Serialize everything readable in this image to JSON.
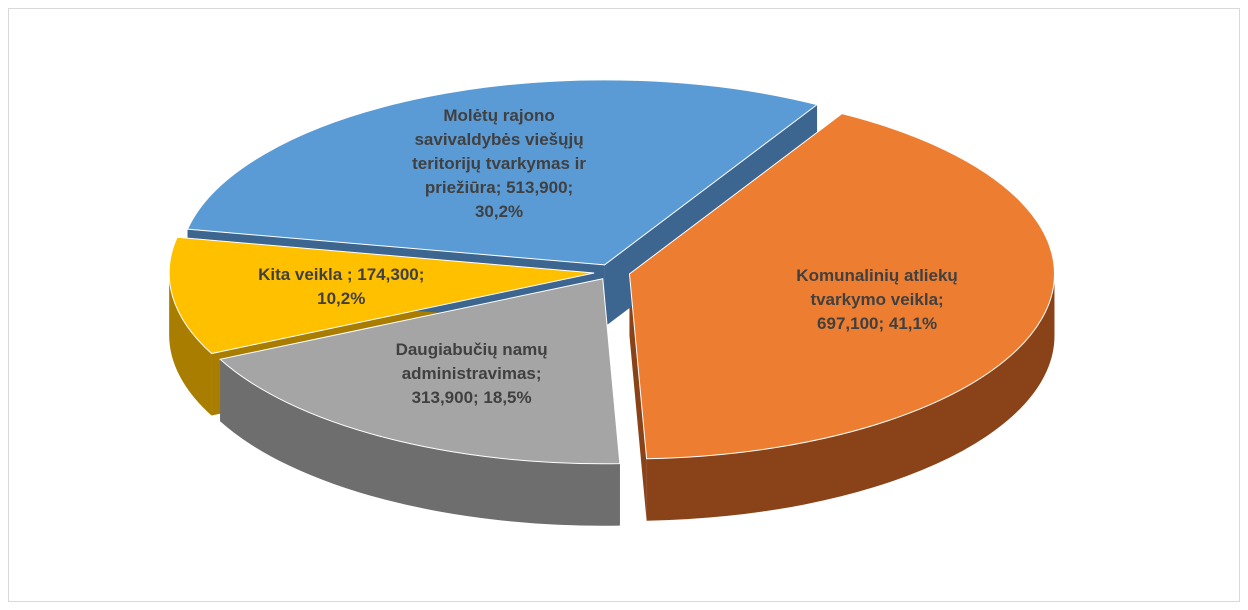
{
  "chart_data": {
    "type": "pie",
    "categories": [
      "Komunalinių atliekų tvarkymo veikla",
      "Daugiabučių namų administravimas",
      "Kita veikla ",
      "Molėtų rajono savivaldybės viešųjų teritorijų tvarkymas ir priežiūra"
    ],
    "values": [
      697100,
      313900,
      174300,
      513900
    ],
    "value_labels": [
      "Komunalinių atliekų tvarkymo veikla; 697,100; 41,1%",
      "Daugiabučių namų administravimas; 313,900; 18,5%",
      "Kita veikla ; 174,300; 10,2%",
      "Molėtų rajono savivaldybės viešųjų teritorijų tvarkymas ir priežiūra; 513,900; 30,2%"
    ],
    "colors": [
      "#ed7d31",
      "#a5a5a5",
      "#ffc000",
      "#5b9bd5"
    ],
    "side_colors": [
      "#8a4318",
      "#6e6e6e",
      "#a87d00",
      "#3c6590"
    ]
  }
}
